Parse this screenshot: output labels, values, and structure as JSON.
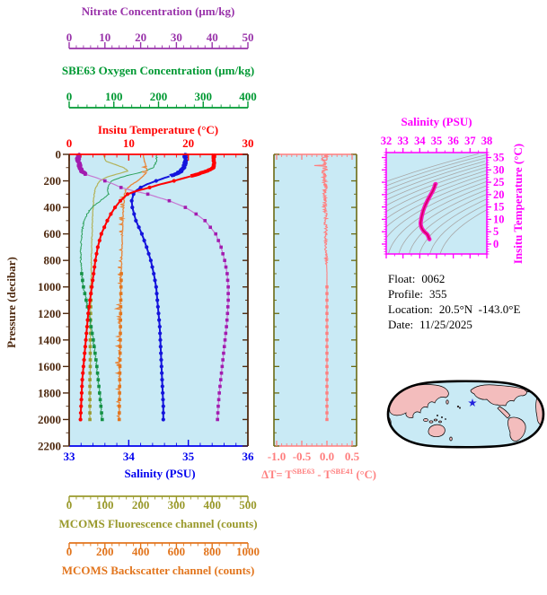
{
  "figure": {
    "background": "#ffffff",
    "plot_background": "#c9eaf5"
  },
  "info": {
    "float_label": "Float:",
    "float_value": "0062",
    "profile_label": "Profile:",
    "profile_value": "355",
    "location_label": "Location:",
    "location_value": "20.5°N  -143.0°E",
    "date_label": "Date:",
    "date_value": "11/25/2025"
  },
  "chart_data": [
    {
      "id": "main_profile",
      "type": "line",
      "y_axis": {
        "label": "Pressure (decibar)",
        "range": [
          0,
          2200
        ],
        "tick_values": [
          0,
          200,
          400,
          600,
          800,
          1000,
          1200,
          1400,
          1600,
          1800,
          2000,
          2200
        ],
        "tick_labels": [
          "0",
          "200",
          "400",
          "600",
          "800",
          "1000",
          "1200",
          "1400",
          "1600",
          "1800",
          "2000",
          "2200"
        ],
        "minor_step": 100,
        "color": "#4f2a10"
      },
      "x_axes": [
        {
          "id": "nitrate",
          "label": "Nitrate Concentration (μm/kg)",
          "range": [
            0,
            50
          ],
          "tick_values": [
            0,
            10,
            20,
            30,
            40,
            50
          ],
          "tick_labels": [
            "0",
            "10",
            "20",
            "30",
            "40",
            "50"
          ],
          "minor_step": 2,
          "color": "#9933aa"
        },
        {
          "id": "oxygen",
          "label": "SBE63 Oxygen Concentration (μm/kg)",
          "range": [
            0,
            400
          ],
          "tick_values": [
            0,
            100,
            200,
            300,
            400
          ],
          "tick_labels": [
            "0",
            "100",
            "200",
            "300",
            "400"
          ],
          "minor_step": 20,
          "color": "#009933"
        },
        {
          "id": "temperature",
          "label": "Insitu Temperature (°C)",
          "range": [
            0,
            30
          ],
          "tick_values": [
            0,
            10,
            20,
            30
          ],
          "tick_labels": [
            "0",
            "10",
            "20",
            "30"
          ],
          "minor_step": 2,
          "color": "#ff0000"
        },
        {
          "id": "salinity",
          "label": "Salinity (PSU)",
          "range": [
            33,
            36
          ],
          "tick_values": [
            33,
            34,
            35,
            36
          ],
          "tick_labels": [
            "33",
            "34",
            "35",
            "36"
          ],
          "minor_step": 0.2,
          "color": "#0000ee"
        },
        {
          "id": "fluorescence",
          "label": "MCOMS Fluorescence channel (counts)",
          "range": [
            0,
            500
          ],
          "tick_values": [
            0,
            100,
            200,
            300,
            400,
            500
          ],
          "tick_labels": [
            "0",
            "100",
            "200",
            "300",
            "400",
            "500"
          ],
          "minor_step": 20,
          "color": "#99992b"
        },
        {
          "id": "backscatter",
          "label": "MCOMS Backscatter channel (counts)",
          "range": [
            0,
            1000
          ],
          "tick_values": [
            0,
            200,
            400,
            600,
            800,
            1000
          ],
          "tick_labels": [
            "0",
            "200",
            "400",
            "600",
            "800",
            "1000"
          ],
          "minor_step": 40,
          "color": "#e2751d"
        }
      ],
      "pressure": [
        0,
        50,
        100,
        125,
        150,
        175,
        200,
        225,
        250,
        275,
        300,
        350,
        400,
        450,
        500,
        600,
        700,
        800,
        900,
        1000,
        1100,
        1200,
        1300,
        1400,
        1500,
        1600,
        1700,
        1800,
        1900,
        2000
      ],
      "series": [
        {
          "name": "fluorescence",
          "axis_id": "fluorescence",
          "color": "#b3b35c",
          "values": [
            95,
            102,
            152,
            165,
            132,
            102,
            86,
            79,
            75,
            72,
            70,
            68,
            67,
            66,
            65,
            64,
            63,
            62,
            62,
            61,
            61,
            60,
            60,
            59,
            59,
            59,
            58,
            58,
            58,
            58
          ]
        },
        {
          "name": "oxygen",
          "axis_id": "oxygen",
          "color": "#2ca05a",
          "values": [
            195,
            196,
            188,
            172,
            142,
            115,
            96,
            89,
            86,
            87,
            88,
            70,
            50,
            40,
            33,
            28,
            26,
            26,
            28,
            32,
            38,
            44,
            49,
            54,
            58,
            62,
            65,
            68,
            71,
            74
          ]
        },
        {
          "name": "backscatter",
          "axis_id": "backscatter",
          "color": "#e8863b",
          "values": [
            415,
            420,
            432,
            436,
            425,
            405,
            385,
            352,
            330,
            316,
            310,
            308,
            305,
            302,
            300,
            298,
            296,
            294,
            292,
            290,
            289,
            288,
            287,
            286,
            285,
            284,
            283,
            282,
            281,
            280
          ]
        },
        {
          "name": "nitrate",
          "axis_id": "nitrate",
          "color": "#a21caf",
          "values": [
            2.5,
            2.5,
            3.0,
            3.5,
            4.5,
            7.5,
            10.0,
            12.5,
            14.5,
            18.0,
            22.0,
            28.0,
            32.5,
            35.5,
            38.0,
            41.0,
            42.5,
            43.5,
            44.2,
            44.5,
            44.5,
            44.3,
            44.0,
            43.6,
            43.2,
            42.8,
            42.4,
            42.0,
            41.7,
            41.5
          ]
        },
        {
          "name": "salinity",
          "axis_id": "salinity",
          "color": "#1414dc",
          "values": [
            34.95,
            34.95,
            34.92,
            34.88,
            34.78,
            34.62,
            34.46,
            34.31,
            34.2,
            34.12,
            34.08,
            34.05,
            34.06,
            34.09,
            34.12,
            34.22,
            34.3,
            34.37,
            34.42,
            34.46,
            34.48,
            34.5,
            34.52,
            34.53,
            34.54,
            34.55,
            34.56,
            34.57,
            34.58,
            34.58
          ]
        },
        {
          "name": "temperature",
          "axis_id": "temperature",
          "color": "#ff0000",
          "values": [
            24.3,
            24.3,
            24.2,
            23.2,
            21.5,
            19.6,
            17.6,
            15.4,
            13.5,
            11.4,
            9.8,
            8.6,
            7.7,
            7.0,
            6.4,
            5.4,
            4.8,
            4.4,
            4.1,
            3.8,
            3.5,
            3.2,
            3.0,
            2.8,
            2.6,
            2.4,
            2.2,
            2.1,
            2.0,
            1.9
          ]
        }
      ]
    },
    {
      "id": "delta_t_profile",
      "type": "line",
      "x_axis": {
        "title_parts": {
          "pre": "ΔT= T",
          "sup1": "SBE63",
          "mid": " - T",
          "sup2": "SBE41",
          "post": " (°C)"
        },
        "range": [
          -1.05,
          0.59
        ],
        "tick_values": [
          -1.0,
          -0.5,
          0.0,
          0.5
        ],
        "tick_labels": [
          "-1.0",
          "-0.5",
          "0.0",
          "0.5"
        ],
        "minor_step": 0.1,
        "color": "#ff7f7f"
      },
      "y_axis": {
        "range": [
          0,
          2200
        ],
        "minor_step": 100,
        "color": "#6b6b14"
      },
      "pressure": [
        0,
        30,
        60,
        80,
        85,
        90,
        100,
        150,
        200,
        250,
        300,
        350,
        400,
        450,
        500,
        600,
        700,
        800,
        900,
        1000,
        1100,
        1200,
        1300,
        1400,
        1500,
        1600,
        1700,
        1800,
        1900,
        2000
      ],
      "values": [
        -0.02,
        -0.05,
        -0.04,
        -0.05,
        -0.28,
        -0.06,
        -0.04,
        -0.06,
        -0.05,
        -0.04,
        -0.05,
        -0.03,
        -0.04,
        -0.02,
        -0.03,
        -0.02,
        -0.02,
        -0.01,
        0,
        0,
        0,
        0,
        0,
        0,
        0,
        0,
        0,
        0,
        0,
        0
      ]
    },
    {
      "id": "ts_diagram",
      "type": "line",
      "title": "Salinity (PSU)",
      "x_axis": {
        "range": [
          32,
          38
        ],
        "tick_values": [
          32,
          33,
          34,
          35,
          36,
          37,
          38
        ],
        "tick_labels": [
          "32",
          "33",
          "34",
          "35",
          "36",
          "37",
          "38"
        ],
        "minor_step": 0.5,
        "color": "#ff00ff"
      },
      "y_axis": {
        "label": "Insitu Temperature (°C)",
        "range": [
          -4,
          37
        ],
        "tick_values": [
          0,
          5,
          10,
          15,
          20,
          25,
          30,
          35
        ],
        "tick_labels": [
          "0",
          "5",
          "10",
          "15",
          "20",
          "25",
          "30",
          "35"
        ],
        "minor_step": 1,
        "color": "#ff00ff"
      },
      "isopycnals": {
        "min": 21,
        "max": 28.5,
        "step": 0.5,
        "color": "#a8a8a8"
      },
      "curve_color": "#f715bd",
      "curve_core_color": "#d6005f",
      "salinity": [
        34.95,
        34.95,
        34.92,
        34.88,
        34.78,
        34.62,
        34.46,
        34.31,
        34.2,
        34.12,
        34.08,
        34.05,
        34.06,
        34.09,
        34.12,
        34.22,
        34.3,
        34.37,
        34.42,
        34.46,
        34.48,
        34.5,
        34.52,
        34.53,
        34.54,
        34.55,
        34.56,
        34.57,
        34.58,
        34.58
      ],
      "temperature": [
        24.3,
        24.3,
        24.2,
        23.2,
        21.5,
        19.6,
        17.6,
        15.4,
        13.5,
        11.4,
        9.8,
        8.6,
        7.7,
        7.0,
        6.4,
        5.4,
        4.8,
        4.4,
        4.1,
        3.8,
        3.5,
        3.2,
        3.0,
        2.8,
        2.6,
        2.4,
        2.2,
        2.1,
        2.0,
        1.9
      ]
    }
  ],
  "map": {
    "ocean_color": "#c9eaf5",
    "land_color": "#f3bdbd",
    "outline_color": "#000000",
    "marker": {
      "symbol": "star",
      "color": "#2323dd"
    }
  }
}
